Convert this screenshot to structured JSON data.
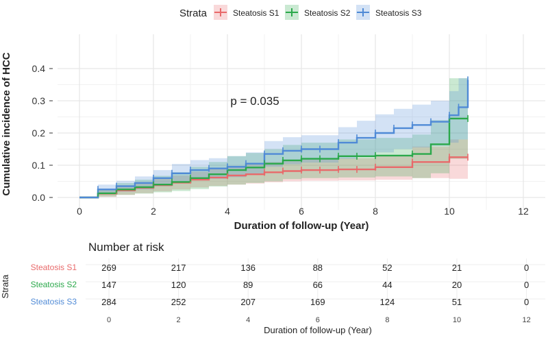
{
  "legend": {
    "title": "Strata",
    "items": [
      "Steatosis S1",
      "Steatosis S2",
      "Steatosis S3"
    ]
  },
  "colors": {
    "s1": "#e8696a",
    "s2": "#2aa84a",
    "s3": "#4f8ad6",
    "grid": "#e6e6e6",
    "panel_bg": "#ffffff"
  },
  "chart_data": [
    {
      "type": "line",
      "subtype": "kaplan-meier-cumulative-incidence",
      "xlabel": "Duration of follow-up (Year)",
      "ylabel": "Cumulative incidence of HCC",
      "xlim": [
        0,
        12
      ],
      "ylim": [
        0,
        0.4
      ],
      "x_ticks": [
        "0",
        "2",
        "4",
        "6",
        "8",
        "10",
        "12"
      ],
      "y_ticks": [
        "0.0",
        "0.1",
        "0.2",
        "0.3",
        "0.4"
      ],
      "grid": true,
      "legend_position": "top",
      "annotation": "p = 0.035",
      "series": [
        {
          "name": "Steatosis S1",
          "color_key": "s1",
          "x": [
            0,
            0.3,
            0.5,
            1.0,
            1.5,
            2.0,
            2.5,
            3.0,
            3.5,
            4.0,
            4.5,
            5.0,
            5.5,
            6.0,
            7.0,
            8.0,
            9.0,
            10.0,
            10.5
          ],
          "y": [
            0,
            0,
            0.012,
            0.022,
            0.03,
            0.038,
            0.046,
            0.055,
            0.062,
            0.068,
            0.072,
            0.078,
            0.082,
            0.085,
            0.087,
            0.094,
            0.11,
            0.125,
            0.125
          ],
          "lower": [
            0,
            0,
            0.002,
            0.008,
            0.013,
            0.019,
            0.025,
            0.031,
            0.036,
            0.04,
            0.043,
            0.047,
            0.05,
            0.052,
            0.053,
            0.055,
            0.06,
            0.058,
            0.058
          ],
          "upper": [
            0,
            0,
            0.024,
            0.038,
            0.048,
            0.058,
            0.068,
            0.08,
            0.09,
            0.097,
            0.102,
            0.11,
            0.115,
            0.119,
            0.122,
            0.132,
            0.158,
            0.18,
            0.18
          ],
          "censor_x": [
            1.0,
            2.0,
            3.0,
            4.0,
            5.0,
            5.5,
            6.0,
            6.5,
            7.0,
            7.5,
            8.0,
            9.0,
            10.0,
            10.5
          ]
        },
        {
          "name": "Steatosis S2",
          "color_key": "s2",
          "x": [
            0,
            0.3,
            0.5,
            1.0,
            1.5,
            2.0,
            2.5,
            3.0,
            3.5,
            4.0,
            4.5,
            5.0,
            5.5,
            6.0,
            7.0,
            8.0,
            9.0,
            9.5,
            10.0,
            10.5
          ],
          "y": [
            0,
            0,
            0.013,
            0.025,
            0.032,
            0.04,
            0.048,
            0.06,
            0.072,
            0.085,
            0.093,
            0.105,
            0.115,
            0.12,
            0.128,
            0.13,
            0.135,
            0.165,
            0.245,
            0.245
          ],
          "lower": [
            0,
            0,
            0.003,
            0.008,
            0.012,
            0.016,
            0.02,
            0.026,
            0.034,
            0.04,
            0.045,
            0.05,
            0.057,
            0.06,
            0.062,
            0.065,
            0.06,
            0.075,
            0.12,
            0.12
          ],
          "upper": [
            0,
            0,
            0.026,
            0.045,
            0.055,
            0.067,
            0.078,
            0.095,
            0.11,
            0.128,
            0.138,
            0.15,
            0.163,
            0.17,
            0.18,
            0.185,
            0.195,
            0.24,
            0.37,
            0.37
          ],
          "censor_x": [
            0.5,
            1.0,
            2.0,
            2.5,
            3.0,
            4.0,
            4.5,
            5.0,
            5.5,
            6.0,
            6.5,
            7.0,
            7.5,
            8.0,
            9.0,
            10.0,
            10.5
          ]
        },
        {
          "name": "Steatosis S3",
          "color_key": "s3",
          "x": [
            0,
            0.3,
            0.5,
            1.0,
            1.5,
            2.0,
            2.5,
            3.0,
            3.5,
            4.0,
            4.5,
            5.0,
            5.5,
            6.0,
            7.0,
            7.5,
            8.0,
            8.5,
            9.0,
            9.5,
            10.0,
            10.25,
            10.5
          ],
          "y": [
            0,
            0,
            0.025,
            0.035,
            0.045,
            0.06,
            0.075,
            0.085,
            0.09,
            0.095,
            0.105,
            0.135,
            0.145,
            0.15,
            0.17,
            0.185,
            0.2,
            0.215,
            0.225,
            0.235,
            0.255,
            0.28,
            0.365
          ],
          "lower": [
            0,
            0,
            0.01,
            0.018,
            0.025,
            0.035,
            0.046,
            0.054,
            0.058,
            0.063,
            0.072,
            0.095,
            0.103,
            0.108,
            0.12,
            0.13,
            0.14,
            0.15,
            0.155,
            0.16,
            0.17,
            0.18,
            0.22
          ],
          "upper": [
            0,
            0,
            0.04,
            0.052,
            0.065,
            0.085,
            0.104,
            0.116,
            0.122,
            0.128,
            0.14,
            0.175,
            0.187,
            0.193,
            0.218,
            0.238,
            0.258,
            0.275,
            0.288,
            0.3,
            0.33,
            0.37,
            0.37
          ],
          "censor_x": [
            0.5,
            1.0,
            2.0,
            2.5,
            3.0,
            3.5,
            4.0,
            4.5,
            5.0,
            5.5,
            6.0,
            6.5,
            7.0,
            7.5,
            8.0,
            8.5,
            9.0,
            9.5,
            10.0,
            10.25,
            10.5
          ]
        }
      ]
    },
    {
      "type": "table",
      "title": "Number at risk",
      "ylabel": "Strata",
      "xlabel": "Duration of follow-up (Year)",
      "x_ticks": [
        "0",
        "2",
        "4",
        "6",
        "8",
        "10",
        "12"
      ],
      "rows": [
        {
          "label": "Steatosis S1",
          "color_key": "s1",
          "values": [
            "269",
            "217",
            "136",
            "88",
            "52",
            "21",
            "0"
          ]
        },
        {
          "label": "Steatosis S2",
          "color_key": "s2",
          "values": [
            "147",
            "120",
            "89",
            "66",
            "44",
            "20",
            "0"
          ]
        },
        {
          "label": "Steatosis S3",
          "color_key": "s3",
          "values": [
            "284",
            "252",
            "207",
            "169",
            "124",
            "51",
            "0"
          ]
        }
      ]
    }
  ]
}
